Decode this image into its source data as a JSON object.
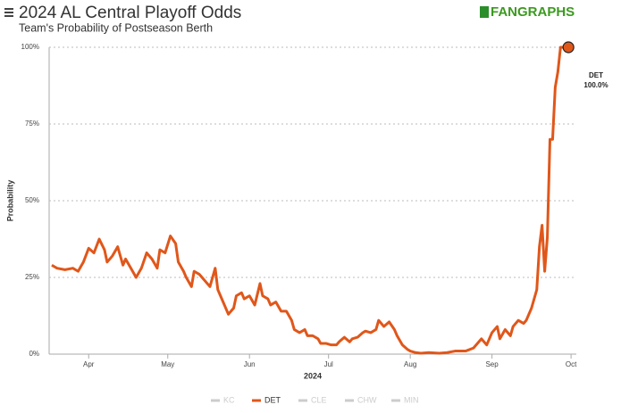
{
  "chart_data": {
    "type": "line",
    "title": "2024 AL Central Playoff Odds",
    "subtitle": "Team's Probability of Postseason Berth",
    "brand": "FANGRAPHS",
    "xlabel": "2024",
    "ylabel": "Probability",
    "xlim": [
      77,
      277
    ],
    "xticks": [
      {
        "value": 92,
        "label": "Apr"
      },
      {
        "value": 122,
        "label": "May"
      },
      {
        "value": 153,
        "label": "Jun"
      },
      {
        "value": 183,
        "label": "Jul"
      },
      {
        "value": 214,
        "label": "Aug"
      },
      {
        "value": 245,
        "label": "Sep"
      },
      {
        "value": 275,
        "label": "Oct"
      }
    ],
    "ylim": [
      0,
      100
    ],
    "yticks": [
      {
        "value": 0,
        "label": "0%"
      },
      {
        "value": 25,
        "label": "25%"
      },
      {
        "value": 50,
        "label": "50%"
      },
      {
        "value": 75,
        "label": "75%"
      },
      {
        "value": 100,
        "label": "100%"
      }
    ],
    "grid": true,
    "legend": [
      {
        "name": "KC",
        "color": "#cccccc"
      },
      {
        "name": "DET",
        "color": "#e0571a"
      },
      {
        "name": "CLE",
        "color": "#cccccc"
      },
      {
        "name": "CHW",
        "color": "#cccccc"
      },
      {
        "name": "MIN",
        "color": "#cccccc"
      }
    ],
    "series": [
      {
        "name": "DET",
        "color": "#e0571a",
        "x": [
          78,
          80,
          83,
          86,
          88,
          90,
          92,
          94,
          96,
          98,
          99,
          101,
          103,
          105,
          106,
          108,
          110,
          112,
          114,
          116,
          118,
          119,
          121,
          123,
          125,
          126,
          128,
          129,
          131,
          132,
          134,
          135,
          136,
          138,
          140,
          141,
          143,
          145,
          147,
          148,
          150,
          151,
          153,
          155,
          157,
          158,
          160,
          161,
          163,
          165,
          167,
          169,
          170,
          172,
          174,
          175,
          177,
          179,
          180,
          182,
          184,
          186,
          187,
          189,
          191,
          192,
          194,
          196,
          197,
          199,
          201,
          202,
          204,
          206,
          208,
          209,
          211,
          213,
          214,
          216,
          218,
          221,
          225,
          228,
          231,
          235,
          238,
          241,
          243,
          245,
          247,
          248,
          250,
          252,
          253,
          255,
          257,
          258,
          260,
          262,
          263,
          264,
          265,
          266,
          267,
          268,
          269,
          270,
          271,
          272,
          274
        ],
        "values": [
          29,
          28,
          27.5,
          28,
          27,
          30,
          34.5,
          33,
          37.5,
          34,
          30,
          32,
          35,
          29,
          31,
          28,
          25,
          28,
          33,
          31,
          28,
          34,
          33,
          38.5,
          36,
          30,
          27,
          25,
          22,
          27,
          26,
          25,
          24,
          22,
          28,
          21,
          17,
          13,
          15,
          19,
          20,
          18,
          19,
          16,
          23,
          19,
          18,
          16,
          17,
          14,
          14,
          11,
          8,
          7,
          8,
          6,
          6,
          5,
          3.5,
          3.5,
          3,
          3,
          4,
          5.5,
          4,
          5,
          5.5,
          7,
          7.5,
          7,
          8,
          11,
          9,
          10.5,
          8,
          6,
          3,
          1.5,
          1,
          0.5,
          0.3,
          0.5,
          0.3,
          0.5,
          1,
          1,
          2,
          5,
          3,
          7,
          9,
          5,
          8,
          6,
          9,
          11,
          10,
          11,
          15,
          21,
          35,
          42,
          27,
          38,
          70,
          70,
          87,
          92,
          100,
          100,
          100
        ],
        "end_label": "100.0%"
      }
    ]
  }
}
